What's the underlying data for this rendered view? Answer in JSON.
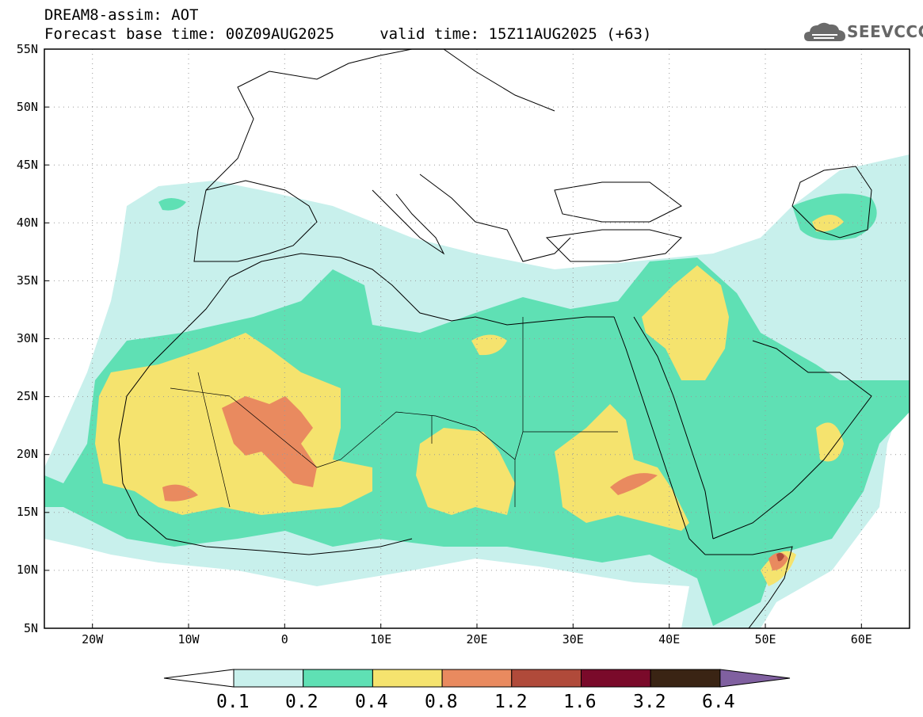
{
  "header": {
    "line1": "DREAM8-assim: AOT",
    "line2": "Forecast base time: 00Z09AUG2025     valid time: 15Z11AUG2025 (+63)"
  },
  "logo": {
    "text": "SEEVCCC",
    "icon": "cloud-icon"
  },
  "map": {
    "lon_range": [
      -25,
      65
    ],
    "lat_range": [
      5,
      55
    ],
    "lat_labels": [
      "55N",
      "50N",
      "45N",
      "40N",
      "35N",
      "30N",
      "25N",
      "20N",
      "15N",
      "10N",
      "5N"
    ],
    "lon_labels": [
      "20W",
      "10W",
      "0",
      "10E",
      "20E",
      "30E",
      "40E",
      "50E",
      "60E"
    ],
    "gridlines": "dotted"
  },
  "colorbar": {
    "labels": [
      "0.1",
      "0.2",
      "0.4",
      "0.8",
      "1.2",
      "1.6",
      "3.2",
      "6.4"
    ],
    "colors": [
      "#c8f0ec",
      "#5fe0b4",
      "#f5e36e",
      "#e98a5f",
      "#b04a3a",
      "#7a0a2a",
      "#3a2414",
      "#8060a0"
    ]
  }
}
